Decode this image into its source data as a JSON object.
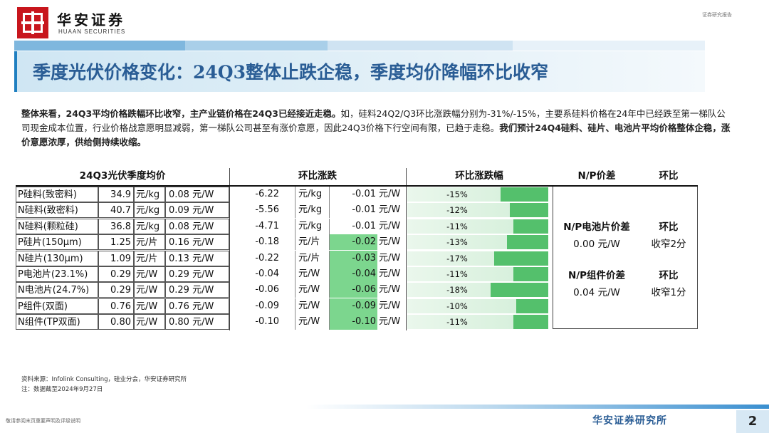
{
  "header": {
    "brand_cn": "华安证券",
    "brand_en": "HUAAN SECURITIES",
    "top_tag": "证券研究报告"
  },
  "title": "季度光伏价格变化：24Q3整体止跌企稳，季度均价降幅环比收窄",
  "paragraph": {
    "p1_bold": "整体来看，24Q3平均价格跌幅环比收窄，主产业链价格在24Q3已经接近走稳。",
    "p2": "如，硅料24Q2/Q3环比涨跌幅分别为-31%/-15%，主要系硅料价格在24年中已经跌至第一梯队公司现金成本位置，行业价格战意愿明显减弱，第一梯队公司甚至有涨价意愿，因此24Q3价格下行空间有限，已趋于走稳。",
    "p3_bold": "我们预计24Q4硅料、硅片、电池片平均价格整体企稳，涨价意愿浓厚，供给侧持续收缩。"
  },
  "table": {
    "headers": {
      "avg": "24Q3光伏季度均价",
      "qoq": "环比涨跌",
      "qoq_pct": "环比涨跌幅",
      "np": "N/P价差",
      "qoq_short": "环比"
    },
    "rows": [
      {
        "name": "P硅料(致密料)",
        "price": "34.9",
        "unit": "元/kg",
        "usd": "0.08 元/W",
        "chg": "-6.22",
        "chg_unit": "元/kg",
        "usd_chg": "-0.01 元/W",
        "pct": "-15%",
        "pct_value": -15,
        "highlight": false
      },
      {
        "name": "N硅料(致密料)",
        "price": "40.7",
        "unit": "元/kg",
        "usd": "0.09 元/W",
        "chg": "-5.56",
        "chg_unit": "元/kg",
        "usd_chg": "-0.01 元/W",
        "pct": "-12%",
        "pct_value": -12,
        "highlight": false
      },
      {
        "name": "N硅料(颗粒硅)",
        "price": "36.8",
        "unit": "元/kg",
        "usd": "0.08 元/W",
        "chg": "-4.71",
        "chg_unit": "元/kg",
        "usd_chg": "-0.01 元/W",
        "pct": "-11%",
        "pct_value": -11,
        "highlight": false
      },
      {
        "name": "P硅片(150μm)",
        "price": "1.25",
        "unit": "元/片",
        "usd": "0.16 元/W",
        "chg": "-0.18",
        "chg_unit": "元/片",
        "usd_chg": "-0.02 元/W",
        "pct": "-13%",
        "pct_value": -13,
        "highlight": true
      },
      {
        "name": "N硅片(130μm)",
        "price": "1.09",
        "unit": "元/片",
        "usd": "0.13 元/W",
        "chg": "-0.22",
        "chg_unit": "元/片",
        "usd_chg": "-0.03 元/W",
        "pct": "-17%",
        "pct_value": -17,
        "highlight": true
      },
      {
        "name": "P电池片(23.1%)",
        "price": "0.29",
        "unit": "元/W",
        "usd": "0.29 元/W",
        "chg": "-0.04",
        "chg_unit": "元/W",
        "usd_chg": "-0.04 元/W",
        "pct": "-11%",
        "pct_value": -11,
        "highlight": true
      },
      {
        "name": "N电池片(24.7%)",
        "price": "0.29",
        "unit": "元/W",
        "usd": "0.29 元/W",
        "chg": "-0.06",
        "chg_unit": "元/W",
        "usd_chg": "-0.06 元/W",
        "pct": "-18%",
        "pct_value": -18,
        "highlight": true
      },
      {
        "name": "P组件(双面)",
        "price": "0.76",
        "unit": "元/W",
        "usd": "0.76 元/W",
        "chg": "-0.09",
        "chg_unit": "元/W",
        "usd_chg": "-0.09 元/W",
        "pct": "-10%",
        "pct_value": -10,
        "highlight": true
      },
      {
        "name": "N组件(TP双面)",
        "price": "0.80",
        "unit": "元/W",
        "usd": "0.80 元/W",
        "chg": "-0.10",
        "chg_unit": "元/W",
        "usd_chg": "-0.10 元/W",
        "pct": "-11%",
        "pct_value": -11,
        "highlight": true
      }
    ],
    "np_cell": {
      "label": "N/P电池片价差",
      "qoq_label": "环比",
      "value": "0.00 元/W",
      "qoq": "收窄2分"
    },
    "np_module": {
      "label": "N/P组件价差",
      "qoq_label": "环比",
      "value": "0.04 元/W",
      "qoq": "收窄1分"
    }
  },
  "source": {
    "line1": "资料来源：Infolink Consulting，硅业分会，华安证券研究所",
    "line2": "注：数据截至2024年9月27日"
  },
  "footer": {
    "disclaimer": "敬请参阅末页重要声明及评级说明",
    "brand": "华安证券研究所",
    "page": "2"
  }
}
